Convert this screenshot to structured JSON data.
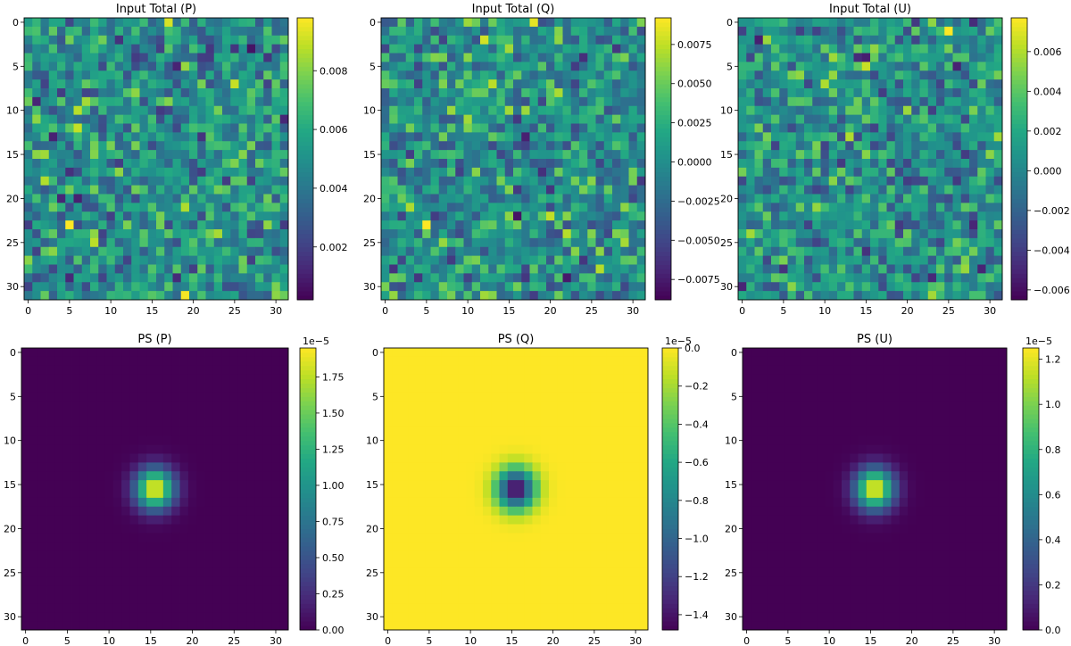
{
  "figure": {
    "title": ""
  },
  "chart_data": [
    {
      "type": "heatmap",
      "title": "Input Total (P)",
      "kind": "noise",
      "seed": 11,
      "grid": [
        32,
        32
      ],
      "vmin": 0.0002,
      "vmax": 0.0098,
      "xticks": [
        0,
        5,
        10,
        15,
        20,
        25,
        30
      ],
      "yticks": [
        0,
        5,
        10,
        15,
        20,
        25,
        30
      ],
      "colorbar": {
        "ticks": [
          0.002,
          0.004,
          0.006,
          0.008
        ],
        "labels": [
          "0.002",
          "0.004",
          "0.006",
          "0.008"
        ],
        "offset": ""
      },
      "hot_pixels": [
        {
          "col": 5,
          "row": 23,
          "value": 0.0098
        },
        {
          "col": 19,
          "row": 31,
          "value": 0.0097
        },
        {
          "col": 17,
          "row": 0,
          "value": 0.0092
        }
      ]
    },
    {
      "type": "heatmap",
      "title": "Input Total (Q)",
      "kind": "noise",
      "seed": 23,
      "grid": [
        32,
        32
      ],
      "vmin": -0.0088,
      "vmax": 0.0092,
      "xticks": [
        0,
        5,
        10,
        15,
        20,
        25,
        30
      ],
      "yticks": [
        0,
        5,
        10,
        15,
        20,
        25,
        30
      ],
      "colorbar": {
        "ticks": [
          -0.0075,
          -0.005,
          -0.0025,
          0.0,
          0.0025,
          0.005,
          0.0075
        ],
        "labels": [
          "−0.0075",
          "−0.0050",
          "−0.0025",
          "0.0000",
          "0.0025",
          "0.0050",
          "0.0075"
        ],
        "offset": ""
      },
      "hot_pixels": [
        {
          "col": 5,
          "row": 23,
          "value": 0.0092
        },
        {
          "col": 12,
          "row": 2,
          "value": 0.008
        },
        {
          "col": 18,
          "row": 0,
          "value": 0.0085
        }
      ]
    },
    {
      "type": "heatmap",
      "title": "Input Total (U)",
      "kind": "noise",
      "seed": 37,
      "grid": [
        32,
        32
      ],
      "vmin": -0.0065,
      "vmax": 0.0077,
      "xticks": [
        0,
        5,
        10,
        15,
        20,
        25,
        30
      ],
      "yticks": [
        0,
        5,
        10,
        15,
        20,
        25,
        30
      ],
      "colorbar": {
        "ticks": [
          -0.006,
          -0.004,
          -0.002,
          0.0,
          0.002,
          0.004,
          0.006
        ],
        "labels": [
          "−0.006",
          "−0.004",
          "−0.002",
          "0.000",
          "0.002",
          "0.004",
          "0.006"
        ],
        "offset": ""
      },
      "hot_pixels": [
        {
          "col": 25,
          "row": 1,
          "value": 0.0077
        },
        {
          "col": 15,
          "row": 5,
          "value": 0.0065
        },
        {
          "col": 13,
          "row": 13,
          "value": 0.006
        }
      ]
    },
    {
      "type": "heatmap",
      "title": "PS (P)",
      "kind": "gaussian",
      "grid": [
        32,
        32
      ],
      "center": [
        16,
        16
      ],
      "sigma": 1.6,
      "peak": 1.95e-05,
      "vmin": 0.0,
      "vmax": 1.95e-05,
      "xticks": [
        0,
        5,
        10,
        15,
        20,
        25,
        30
      ],
      "yticks": [
        0,
        5,
        10,
        15,
        20,
        25,
        30
      ],
      "colorbar": {
        "ticks": [
          0.0,
          2.5e-06,
          5e-06,
          7.5e-06,
          1e-05,
          1.25e-05,
          1.5e-05,
          1.75e-05
        ],
        "labels": [
          "0.00",
          "0.25",
          "0.50",
          "0.75",
          "1.00",
          "1.25",
          "1.50",
          "1.75"
        ],
        "offset": "1e−5"
      }
    },
    {
      "type": "heatmap",
      "title": "PS (Q)",
      "kind": "gaussian",
      "grid": [
        32,
        32
      ],
      "center": [
        16,
        16
      ],
      "sigma": 1.6,
      "peak": -1.48e-05,
      "vmin": -1.48e-05,
      "vmax": 0.0,
      "xticks": [
        0,
        5,
        10,
        15,
        20,
        25,
        30
      ],
      "yticks": [
        0,
        5,
        10,
        15,
        20,
        25,
        30
      ],
      "colorbar": {
        "ticks": [
          -1.4e-05,
          -1.2e-05,
          -1e-05,
          -8e-06,
          -6e-06,
          -4e-06,
          -2e-06,
          0.0
        ],
        "labels": [
          "−1.4",
          "−1.2",
          "−1.0",
          "−0.8",
          "−0.6",
          "−0.4",
          "−0.2",
          "0.0"
        ],
        "offset": "1e−5"
      }
    },
    {
      "type": "heatmap",
      "title": "PS (U)",
      "kind": "gaussian",
      "grid": [
        32,
        32
      ],
      "center": [
        16,
        16
      ],
      "sigma": 1.6,
      "peak": 1.25e-05,
      "vmin": 0.0,
      "vmax": 1.25e-05,
      "xticks": [
        0,
        5,
        10,
        15,
        20,
        25,
        30
      ],
      "yticks": [
        0,
        5,
        10,
        15,
        20,
        25,
        30
      ],
      "colorbar": {
        "ticks": [
          0.0,
          2e-06,
          4e-06,
          6e-06,
          8e-06,
          1e-05,
          1.2e-05
        ],
        "labels": [
          "0.0",
          "0.2",
          "0.4",
          "0.6",
          "0.8",
          "1.0",
          "1.2"
        ],
        "offset": "1e−5"
      }
    }
  ]
}
